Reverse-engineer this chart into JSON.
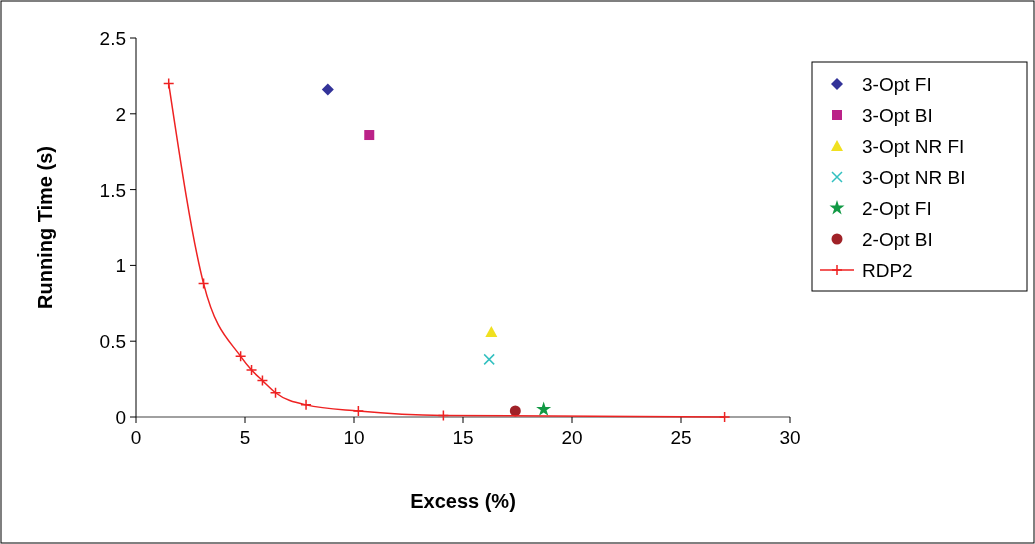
{
  "chart_data": {
    "type": "scatter",
    "xlabel": "Excess (%)",
    "ylabel": "Running Time (s)",
    "xlim": [
      0,
      30
    ],
    "xticks": [
      0,
      5,
      10,
      15,
      20,
      25,
      30
    ],
    "ylim": [
      0,
      2.5
    ],
    "yticks": [
      0,
      0.5,
      1,
      1.5,
      2,
      2.5
    ],
    "grid": false,
    "legend": "right",
    "series": [
      {
        "name": "3-Opt FI",
        "color": "#333399",
        "marker": "diamond",
        "x": [
          8.8
        ],
        "values": [
          2.16
        ]
      },
      {
        "name": "3-Opt BI",
        "color": "#bb2288",
        "marker": "square",
        "x": [
          10.7
        ],
        "values": [
          1.86
        ]
      },
      {
        "name": "3-Opt NR FI",
        "color": "#f0e020",
        "marker": "triangle",
        "x": [
          16.3
        ],
        "values": [
          0.56
        ]
      },
      {
        "name": "3-Opt NR BI",
        "color": "#33c0c0",
        "marker": "cross",
        "x": [
          16.2
        ],
        "values": [
          0.38
        ]
      },
      {
        "name": "2-Opt FI",
        "color": "#119944",
        "marker": "star",
        "x": [
          18.7
        ],
        "values": [
          0.05
        ]
      },
      {
        "name": "2-Opt BI",
        "color": "#a02228",
        "marker": "circle",
        "x": [
          17.4
        ],
        "values": [
          0.04
        ]
      },
      {
        "name": "RDP2",
        "color": "#ee2222",
        "type": "line",
        "marker": "cross",
        "line_style": "solid",
        "x": [
          1.5,
          3.1,
          4.8,
          5.3,
          5.8,
          6.4,
          7.8,
          10.2,
          14.1,
          27
        ],
        "values": [
          2.2,
          0.88,
          0.4,
          0.31,
          0.24,
          0.16,
          0.08,
          0.04,
          0.01,
          0
        ]
      }
    ]
  }
}
